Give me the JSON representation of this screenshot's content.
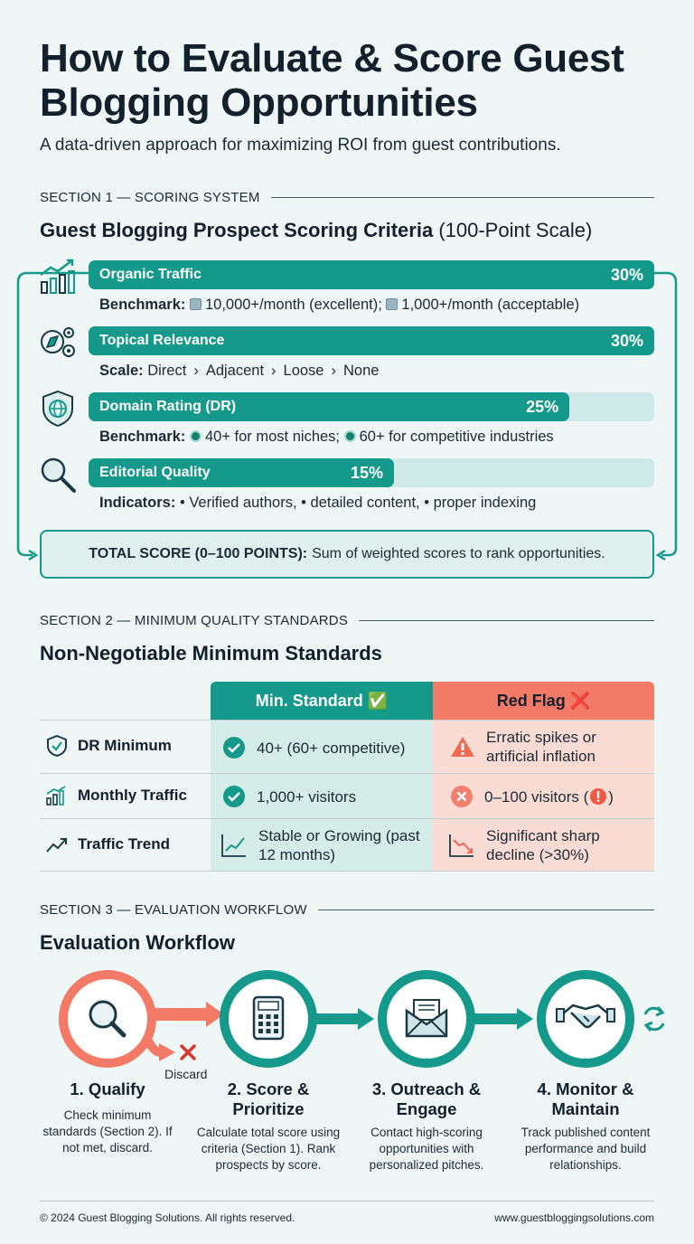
{
  "header": {
    "title": "How to Evaluate & Score Guest Blogging Opportunities",
    "subtitle": "A data-driven approach for maximizing ROI from guest contributions."
  },
  "section1": {
    "label": "SECTION 1 — SCORING SYSTEM",
    "title": "Guest Blogging Prospect Scoring Criteria",
    "title_suffix": "(100-Point Scale)",
    "criteria": [
      {
        "name": "Organic Traffic",
        "weight": "30%",
        "weight_value": 30,
        "detail_label": "Benchmark:",
        "detail_parts": [
          "10,000+/month (excellent);",
          "1,000+/month (acceptable)"
        ],
        "icon": "growth-chart-icon"
      },
      {
        "name": "Topical Relevance",
        "weight": "30%",
        "weight_value": 30,
        "detail_label": "Scale:",
        "detail_parts": [
          "Direct",
          "Adjacent",
          "Loose",
          "None"
        ],
        "icon": "compass-gears-icon"
      },
      {
        "name": "Domain Rating (DR)",
        "weight": "25%",
        "weight_value": 25,
        "detail_label": "Benchmark:",
        "detail_parts": [
          "40+ for most niches;",
          "60+ for competitive industries"
        ],
        "icon": "globe-shield-icon"
      },
      {
        "name": "Editorial Quality",
        "weight": "15%",
        "weight_value": 15,
        "detail_label": "Indicators:",
        "detail_parts": [
          "• Verified authors,",
          "• detailed content,",
          "• proper indexing"
        ],
        "icon": "magnifier-icon"
      }
    ],
    "total_label": "TOTAL SCORE (0–100 POINTS):",
    "total_text": "Sum of weighted scores to rank opportunities."
  },
  "section2": {
    "label": "SECTION 2 — MINIMUM QUALITY STANDARDS",
    "title": "Non-Negotiable Minimum Standards",
    "col_min": "Min. Standard ✅",
    "col_red": "Red Flag ❌",
    "rows": [
      {
        "label": "DR Minimum",
        "min": "40+ (60+ competitive)",
        "red": "Erratic spikes or artificial inflation",
        "icon": "shield-check-icon"
      },
      {
        "label": "Monthly Traffic",
        "min": "1,000+ visitors",
        "red": "0–100 visitors (",
        "red_suffix": ")",
        "icon": "bar-chart-icon"
      },
      {
        "label": "Traffic Trend",
        "min": "Stable or Growing (past 12 months)",
        "red": "Significant sharp decline (>30%)",
        "icon": "trend-up-icon"
      }
    ]
  },
  "section3": {
    "label": "SECTION 3 — EVALUATION WORKFLOW",
    "title": "Evaluation Workflow",
    "discard": "Discard",
    "steps": [
      {
        "title": "1. Qualify",
        "desc": "Check minimum standards (Section 2). If not met, discard."
      },
      {
        "title": "2. Score & Prioritize",
        "desc": "Calculate total score using criteria (Section 1). Rank prospects by score."
      },
      {
        "title": "3. Outreach & Engage",
        "desc": "Contact high-scoring opportunities with personalized pitches."
      },
      {
        "title": "4. Monitor & Maintain",
        "desc": "Track published content performance and build relationships."
      }
    ]
  },
  "footer": {
    "copyright": "© 2024 Guest Blogging Solutions. All rights reserved.",
    "url": "www.guestbloggingsolutions.com"
  },
  "colors": {
    "teal": "#14998a",
    "coral": "#ef7261",
    "dark": "#13202b"
  }
}
